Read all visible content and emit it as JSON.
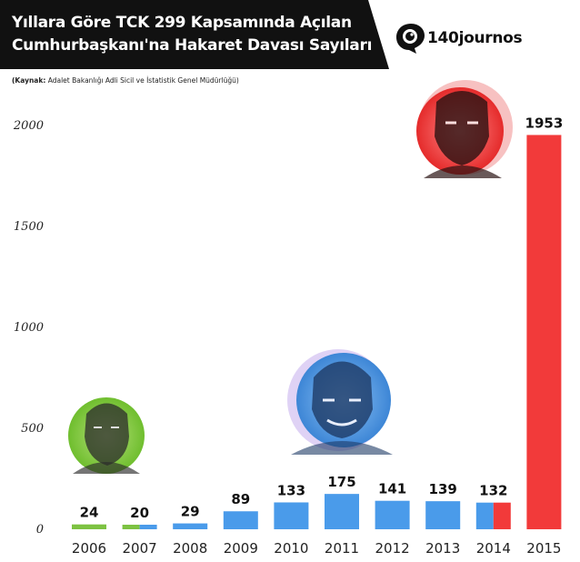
{
  "title": {
    "line1": "Yıllara Göre TCK 299 Kapsamında Açılan",
    "line2": "Cumhurbaşkanı'na Hakaret Davası Sayıları"
  },
  "source": {
    "prefix": "(Kaynak:",
    "text": " Adalet Bakanlığı Adli Sicil ve İstatistik Genel Müdürlüğü)"
  },
  "brand": {
    "name": "140journos",
    "icon": "camera-eye-icon"
  },
  "colors": {
    "green": "#7DC242",
    "blue": "#4A9BEA",
    "red": "#F23A3A",
    "banner": "#111111"
  },
  "chart_data": {
    "type": "bar",
    "categories": [
      "2006",
      "2007",
      "2008",
      "2009",
      "2010",
      "2011",
      "2012",
      "2013",
      "2014",
      "2015"
    ],
    "values": [
      24,
      20,
      29,
      89,
      133,
      175,
      141,
      139,
      132,
      1953
    ],
    "value_labels": [
      "24",
      "20",
      "29",
      "89",
      "133",
      "175",
      "141",
      "139",
      "132",
      "1953"
    ],
    "bar_colors": [
      [
        "#7DC242"
      ],
      [
        "#7DC242",
        "#4A9BEA"
      ],
      [
        "#4A9BEA"
      ],
      [
        "#4A9BEA"
      ],
      [
        "#4A9BEA"
      ],
      [
        "#4A9BEA"
      ],
      [
        "#4A9BEA"
      ],
      [
        "#4A9BEA"
      ],
      [
        "#4A9BEA",
        "#F23A3A"
      ],
      [
        "#F23A3A"
      ]
    ],
    "yticks": [
      0,
      500,
      1000,
      1500,
      2000
    ],
    "ytick_labels": [
      "0",
      "500",
      "1000",
      "1500",
      "2000"
    ],
    "ylim": [
      0,
      2000
    ],
    "grid": false,
    "legend": "none",
    "annotations": [
      {
        "type": "portrait",
        "name": "portrait-green",
        "color": "#7DC242",
        "near_category": "2006"
      },
      {
        "type": "portrait",
        "name": "portrait-blue",
        "color": "#4A9BEA",
        "near_category": "2011"
      },
      {
        "type": "portrait",
        "name": "portrait-red",
        "color": "#F23A3A",
        "near_category": "2014"
      }
    ]
  }
}
